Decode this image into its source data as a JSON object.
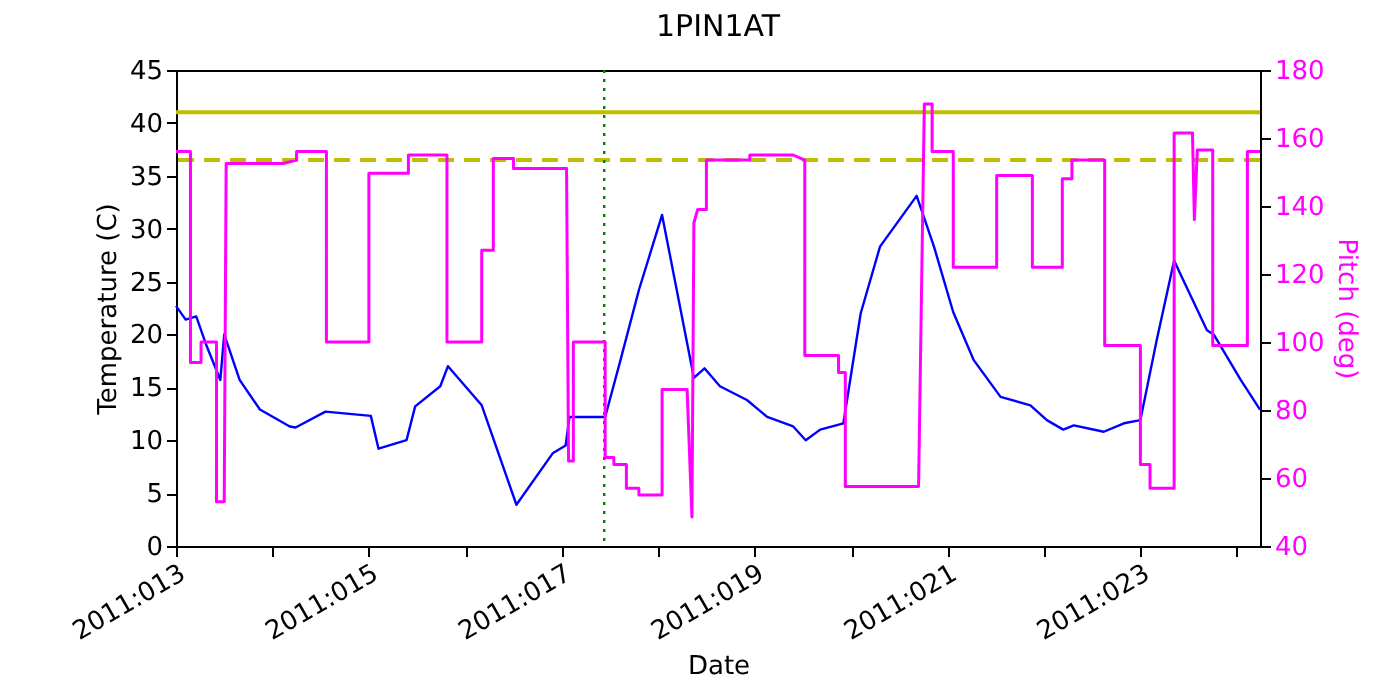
{
  "chart_data": {
    "type": "line",
    "title": "1PIN1AT",
    "xlabel": "Date",
    "ylabel": "Temperature (C)",
    "y2label": "Pitch (deg)",
    "xlim": [
      "2011-01-13",
      "2011-01-24T05:46"
    ],
    "xticks": [
      {
        "value": "2011-01-13",
        "label": "2011:013"
      },
      {
        "value": "2011-01-14",
        "label": null
      },
      {
        "value": "2011-01-15",
        "label": "2011:015"
      },
      {
        "value": "2011-01-16",
        "label": null
      },
      {
        "value": "2011-01-17",
        "label": "2011:017"
      },
      {
        "value": "2011-01-18",
        "label": null
      },
      {
        "value": "2011-01-19",
        "label": "2011:019"
      },
      {
        "value": "2011-01-20",
        "label": null
      },
      {
        "value": "2011-01-21",
        "label": "2011:021"
      },
      {
        "value": "2011-01-22",
        "label": null
      },
      {
        "value": "2011-01-23",
        "label": "2011:023"
      },
      {
        "value": "2011-01-24",
        "label": null
      }
    ],
    "ylim": [
      0,
      45
    ],
    "yticks": [
      0,
      5,
      10,
      15,
      20,
      25,
      30,
      35,
      40,
      45
    ],
    "y2lim": [
      40,
      180
    ],
    "y2ticks": [
      40,
      60,
      80,
      100,
      120,
      140,
      160,
      180
    ],
    "grid": false,
    "series": [
      {
        "color": "#0000ff",
        "x": [
          "2011-01-13T00:00",
          "2011-01-13T02:24",
          "2011-01-13T05:02",
          "2011-01-13T07:26",
          "2011-01-13T11:02",
          "2011-01-13T12:00",
          "2011-01-13T15:50",
          "2011-01-13T20:53",
          "2011-01-14T04:19",
          "2011-01-14T05:46",
          "2011-01-14T13:12",
          "2011-01-15T00:29",
          "2011-01-15T02:24",
          "2011-01-15T09:22",
          "2011-01-15T11:31",
          "2011-01-15T17:46",
          "2011-01-15T19:41",
          "2011-01-16T04:05",
          "2011-01-16T12:43",
          "2011-01-16T21:50",
          "2011-01-17T00:58",
          "2011-01-17T01:55",
          "2011-01-17T10:48",
          "2011-01-17T14:38",
          "2011-01-17T19:12",
          "2011-01-18T00:58",
          "2011-01-18T08:53",
          "2011-01-18T11:31",
          "2011-01-18T15:22",
          "2011-01-18T22:05",
          "2011-01-19T03:07",
          "2011-01-19T09:36",
          "2011-01-19T12:43",
          "2011-01-19T16:19",
          "2011-01-19T22:05",
          "2011-01-20T02:24",
          "2011-01-20T07:12",
          "2011-01-20T16:19",
          "2011-01-20T20:38",
          "2011-01-21T01:26",
          "2011-01-21T06:29",
          "2011-01-21T13:12",
          "2011-01-21T20:38",
          "2011-01-22T00:43",
          "2011-01-22T04:48",
          "2011-01-22T07:26",
          "2011-01-22T14:53",
          "2011-01-22T19:55",
          "2011-01-23T00:00",
          "2011-01-23T04:05",
          "2011-01-23T08:24",
          "2011-01-23T09:50",
          "2011-01-23T16:34",
          "2011-01-23T18:14",
          "2011-01-24T00:58",
          "2011-01-24T05:46"
        ],
        "values": [
          22.7,
          21.4,
          21.7,
          19.1,
          15.7,
          20.0,
          15.7,
          12.9,
          11.3,
          11.2,
          12.7,
          12.3,
          9.2,
          10.0,
          13.2,
          15.1,
          17.0,
          13.3,
          3.9,
          8.8,
          9.5,
          12.2,
          12.2,
          17.6,
          24.2,
          31.3,
          15.9,
          16.8,
          15.1,
          13.8,
          12.2,
          11.3,
          10.0,
          11.0,
          11.6,
          22.0,
          28.3,
          33.1,
          28.3,
          22.1,
          17.6,
          14.1,
          13.3,
          11.9,
          11.0,
          11.4,
          10.8,
          11.6,
          11.9,
          19.5,
          27.0,
          25.8,
          20.4,
          20.0,
          15.7,
          12.9
        ]
      },
      {
        "color": "#ff00ff",
        "axis": "y2",
        "x": [
          "2011-01-13T00:00",
          "2011-01-13T03:36",
          "2011-01-13T03:36",
          "2011-01-13T06:14",
          "2011-01-13T06:14",
          "2011-01-13T10:05",
          "2011-01-13T10:05",
          "2011-01-13T12:00",
          "2011-01-13T12:29",
          "2011-01-14T02:38",
          "2011-01-14T06:00",
          "2011-01-14T06:00",
          "2011-01-14T13:26",
          "2011-01-14T13:26",
          "2011-01-15T00:00",
          "2011-01-15T00:00",
          "2011-01-15T09:50",
          "2011-01-15T09:50",
          "2011-01-15T19:26",
          "2011-01-15T19:26",
          "2011-01-16T04:05",
          "2011-01-16T04:05",
          "2011-01-16T06:58",
          "2011-01-16T06:58",
          "2011-01-16T12:00",
          "2011-01-16T12:00",
          "2011-01-17T01:12",
          "2011-01-17T01:41",
          "2011-01-17T02:53",
          "2011-01-17T02:53",
          "2011-01-17T10:48",
          "2011-01-17T10:48",
          "2011-01-17T12:58",
          "2011-01-17T12:58",
          "2011-01-17T16:05",
          "2011-01-17T16:05",
          "2011-01-17T19:12",
          "2011-01-17T19:12",
          "2011-01-18T00:58",
          "2011-01-18T00:58",
          "2011-01-18T07:12",
          "2011-01-18T08:24",
          "2011-01-18T08:53",
          "2011-01-18T09:50",
          "2011-01-18T12:00",
          "2011-01-18T12:00",
          "2011-01-18T22:48",
          "2011-01-18T22:48",
          "2011-01-19T09:36",
          "2011-01-19T12:29",
          "2011-01-19T12:29",
          "2011-01-19T20:53",
          "2011-01-19T20:53",
          "2011-01-19T22:34",
          "2011-01-19T22:34",
          "2011-01-20T16:48",
          "2011-01-20T18:14",
          "2011-01-20T20:10",
          "2011-01-20T20:10",
          "2011-01-21T01:26",
          "2011-01-21T01:26",
          "2011-01-21T12:14",
          "2011-01-21T12:14",
          "2011-01-21T21:07",
          "2011-01-21T21:07",
          "2011-01-22T04:34",
          "2011-01-22T04:34",
          "2011-01-22T06:58",
          "2011-01-22T06:58",
          "2011-01-22T15:07",
          "2011-01-22T15:07",
          "2011-01-23T00:00",
          "2011-01-23T00:00",
          "2011-01-23T02:24",
          "2011-01-23T02:24",
          "2011-01-23T08:24",
          "2011-01-23T08:24",
          "2011-01-23T12:58",
          "2011-01-23T13:26",
          "2011-01-23T14:10",
          "2011-01-23T18:00",
          "2011-01-23T18:00",
          "2011-01-24T02:38",
          "2011-01-24T02:38",
          "2011-01-24T05:46"
        ],
        "values": [
          156,
          156,
          94,
          94,
          100,
          100,
          53,
          53,
          152.5,
          152.5,
          153.5,
          156,
          156,
          100,
          100,
          149.6,
          149.6,
          155,
          155,
          100,
          100,
          127,
          127,
          154,
          154,
          151,
          151,
          65,
          65,
          100,
          100,
          66,
          66,
          64,
          64,
          57,
          57,
          55,
          55,
          86,
          86,
          48.5,
          135,
          139,
          139,
          153.5,
          153.5,
          155,
          155,
          153.5,
          96,
          96,
          91,
          91,
          57.5,
          57.5,
          170,
          170,
          156,
          156,
          122,
          122,
          149,
          149,
          122,
          122,
          148,
          148,
          153.5,
          153.5,
          99,
          99,
          64,
          64,
          57,
          57,
          161.5,
          161.5,
          136,
          156.5,
          156.5,
          99,
          99,
          156,
          156
        ]
      }
    ],
    "ref_lines": [
      {
        "axis": "y",
        "value": 41,
        "label": null,
        "color": "#bfbf00",
        "line_style": "solid"
      },
      {
        "axis": "y",
        "value": 36.5,
        "label": null,
        "color": "#bfbf00",
        "line_style": "dashed"
      },
      {
        "axis": "x",
        "value": "2011-01-17T10:34",
        "label": null,
        "color": "#008000",
        "line_style": "dotted"
      }
    ]
  }
}
